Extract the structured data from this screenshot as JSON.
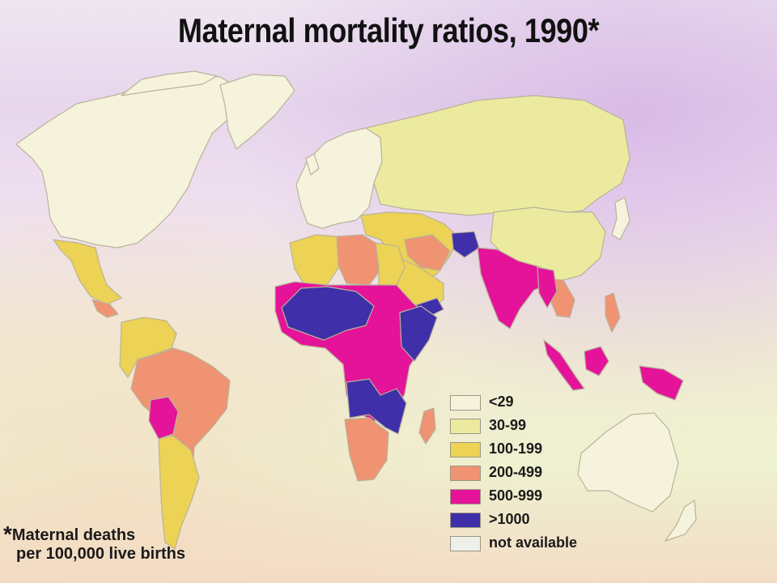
{
  "title": "Maternal mortality ratios, 1990*",
  "legend": [
    {
      "label": "<29",
      "color": "#f6f3dc"
    },
    {
      "label": "30-99",
      "color": "#ecea9e"
    },
    {
      "label": "100-199",
      "color": "#ecd255"
    },
    {
      "label": "200-499",
      "color": "#ef9373"
    },
    {
      "label": "500-999",
      "color": "#e5129a"
    },
    {
      "label": ">1000",
      "color": "#3f2fa8"
    },
    {
      "label": "not available",
      "color": "#eef0ea"
    }
  ],
  "footnote": {
    "marker": "*",
    "line1": "Maternal deaths",
    "line2": "per 100,000 live births"
  },
  "colors": {
    "ocean_top": "#e7d6ec",
    "ocean_bottom": "#f3dcc6",
    "border": "#b9b39a"
  }
}
